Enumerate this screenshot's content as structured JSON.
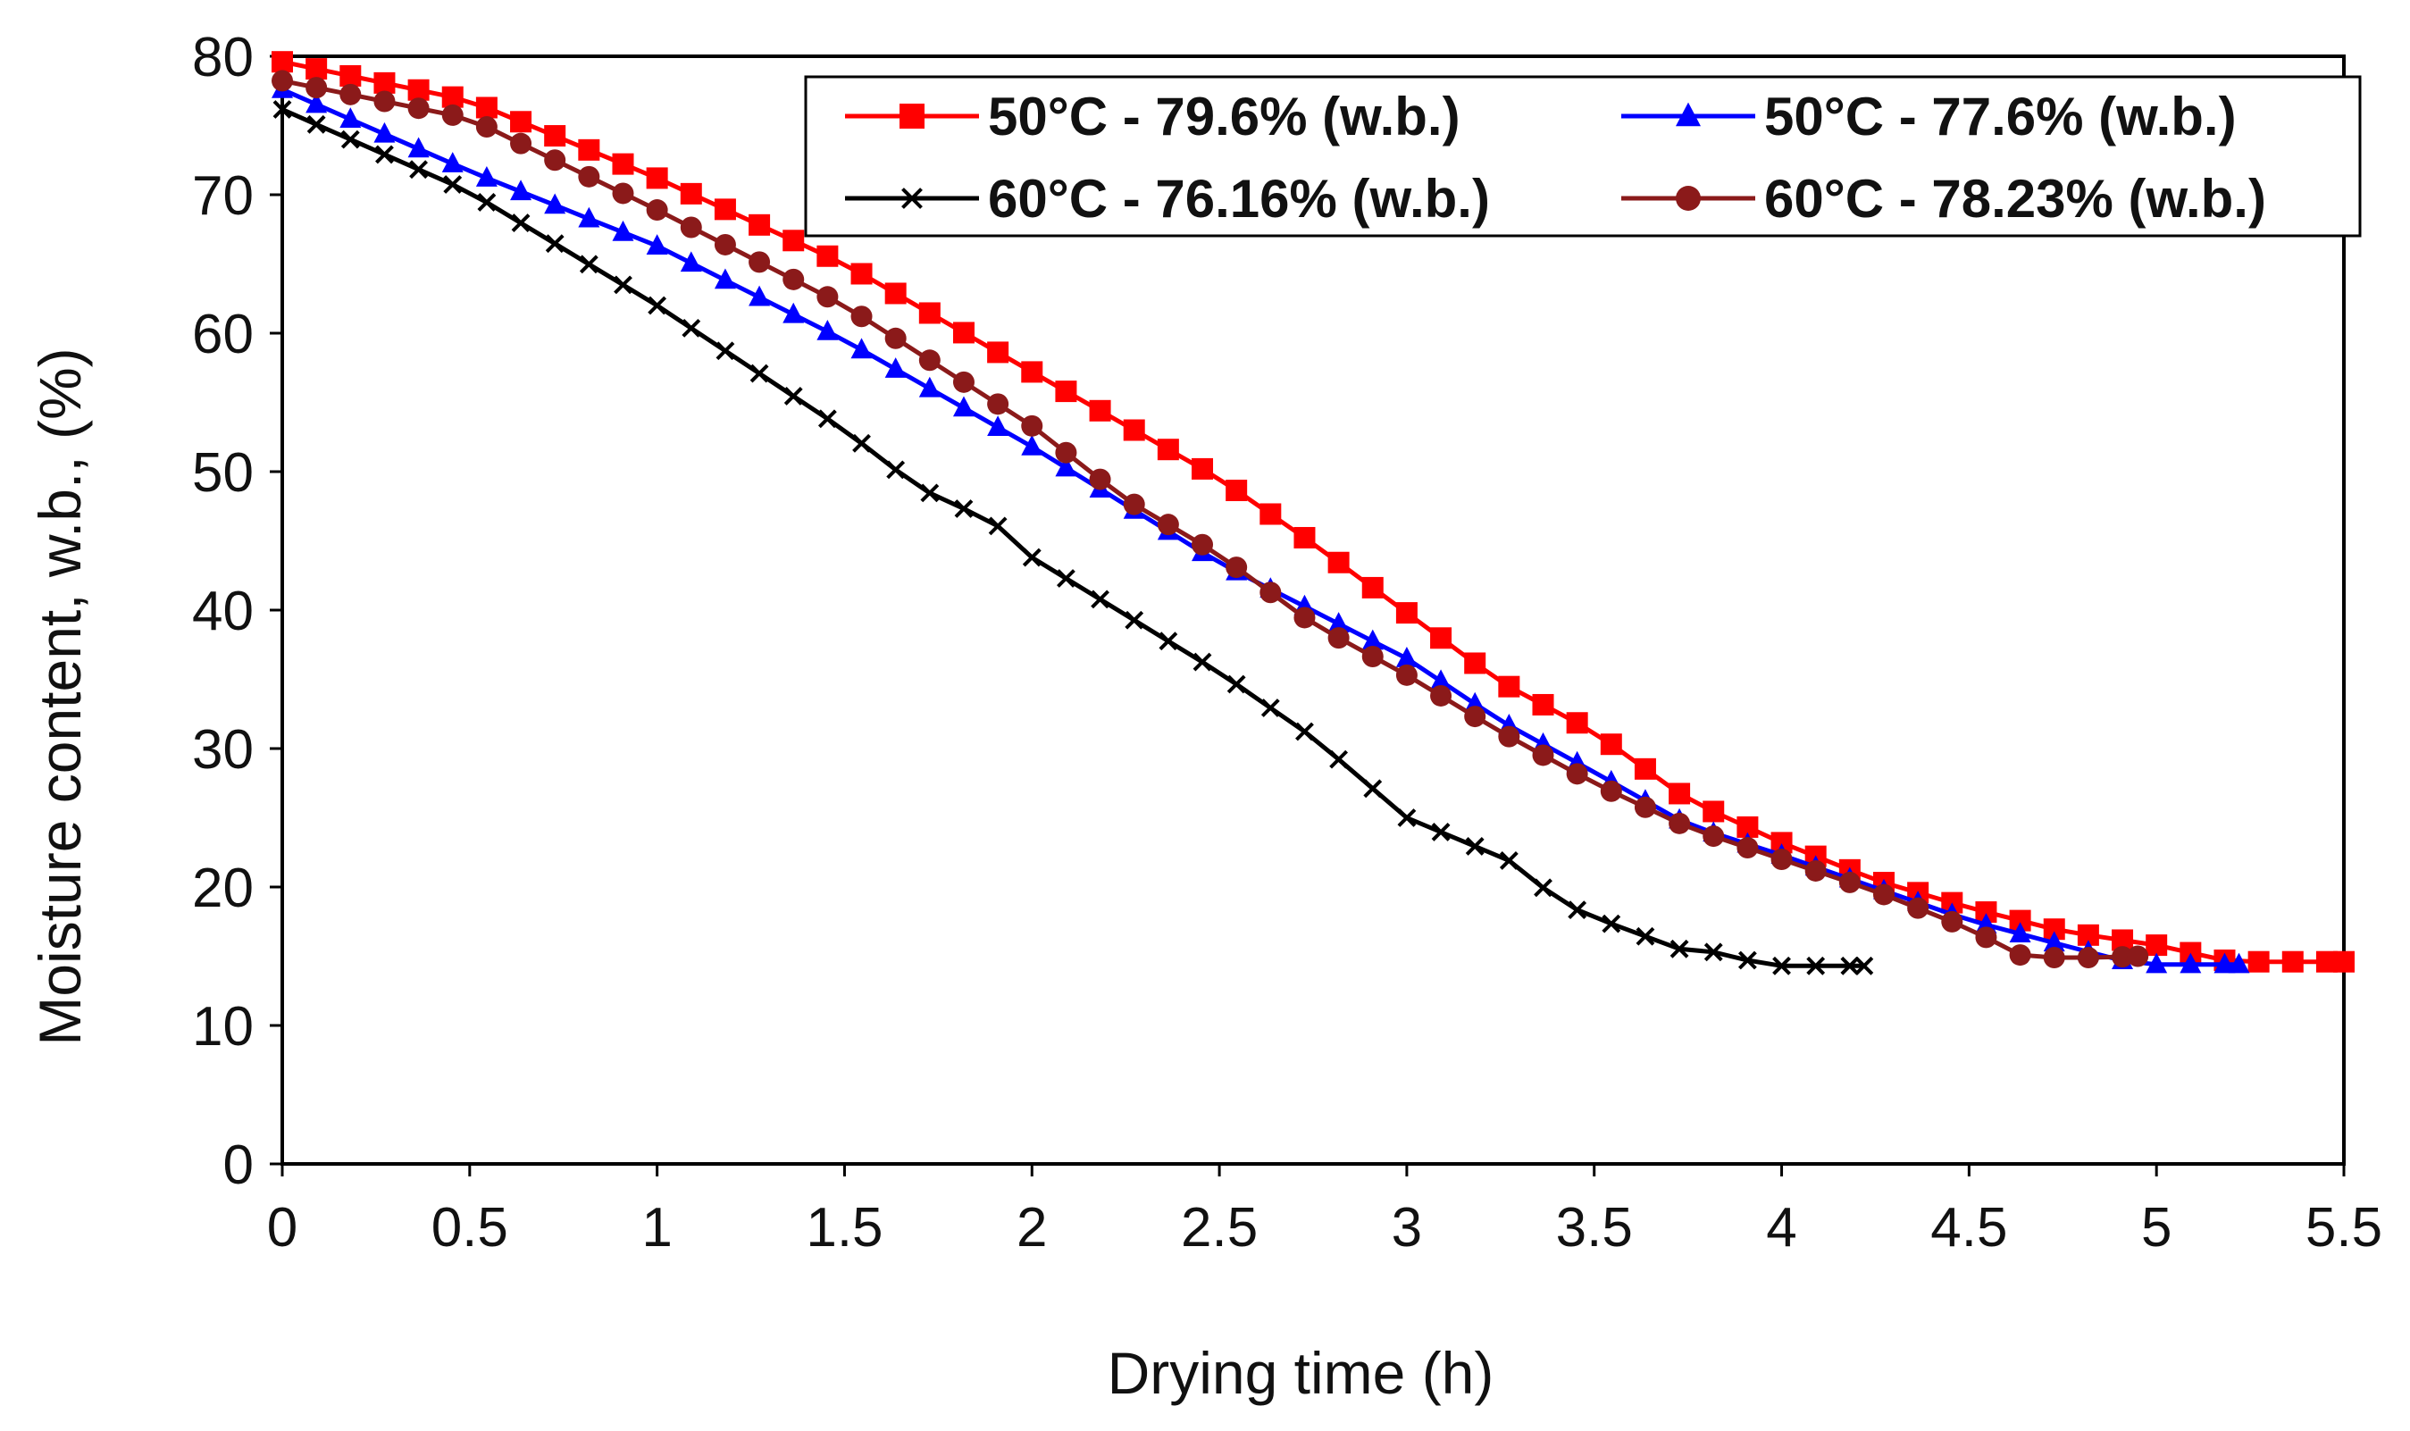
{
  "chart_data": {
    "type": "line",
    "title": "",
    "xlabel": "Drying time (h)",
    "ylabel": "Moisture content,  w.b., (%)",
    "xlim": [
      0,
      5.5
    ],
    "ylim": [
      0,
      80
    ],
    "x_ticks": [
      0,
      0.5,
      1,
      1.5,
      2,
      2.5,
      3,
      3.5,
      4,
      4.5,
      5,
      5.5
    ],
    "x_tick_labels": [
      "0",
      "0.5",
      "1",
      "1.5",
      "2",
      "2.5",
      "3",
      "3.5",
      "4",
      "4.5",
      "5",
      "5.5"
    ],
    "y_ticks": [
      0,
      10,
      20,
      30,
      40,
      50,
      60,
      70,
      80
    ],
    "y_tick_labels": [
      "0",
      "10",
      "20",
      "30",
      "40",
      "50",
      "60",
      "70",
      "80"
    ],
    "grid": false,
    "legend_position": "top-right",
    "series": [
      {
        "name": "50°C - 79.6% (w.b.)",
        "color": "#ff0000",
        "marker": "square",
        "key": [
          [
            0,
            79.6
          ],
          [
            0.5,
            76.8
          ],
          [
            1,
            71.2
          ],
          [
            1.5,
            65.0
          ],
          [
            2,
            57.2
          ],
          [
            2.5,
            49.5
          ],
          [
            2.75,
            44.8
          ],
          [
            3,
            39.8
          ],
          [
            3.25,
            34.8
          ],
          [
            3.5,
            31.2
          ],
          [
            3.75,
            26.3
          ],
          [
            4,
            23.2
          ],
          [
            4.25,
            20.5
          ],
          [
            4.5,
            18.5
          ],
          [
            4.75,
            16.8
          ],
          [
            5,
            15.8
          ],
          [
            5.2,
            14.6
          ],
          [
            5.5,
            14.6
          ]
        ]
      },
      {
        "name": "50°C - 77.6% (w.b.)",
        "color": "#0000ff",
        "marker": "triangle",
        "key": [
          [
            0,
            77.6
          ],
          [
            0.5,
            71.7
          ],
          [
            1,
            66.3
          ],
          [
            1.5,
            59.5
          ],
          [
            2,
            51.8
          ],
          [
            2.5,
            43.4
          ],
          [
            3,
            36.5
          ],
          [
            3.25,
            32.0
          ],
          [
            3.5,
            28.3
          ],
          [
            3.75,
            24.5
          ],
          [
            4,
            22.3
          ],
          [
            4.5,
            17.6
          ],
          [
            4.75,
            15.8
          ],
          [
            4.95,
            14.4
          ],
          [
            5.22,
            14.4
          ]
        ]
      },
      {
        "name": "60°C - 76.16% (w.b.)",
        "color": "#000000",
        "marker": "x",
        "key": [
          [
            0,
            76.16
          ],
          [
            0.5,
            70.2
          ],
          [
            1,
            62.0
          ],
          [
            1.5,
            53.0
          ],
          [
            1.7,
            48.8
          ],
          [
            1.9,
            46.3
          ],
          [
            2,
            43.8
          ],
          [
            2.5,
            35.5
          ],
          [
            2.75,
            30.8
          ],
          [
            3,
            25.0
          ],
          [
            3.3,
            21.6
          ],
          [
            3.4,
            19.0
          ],
          [
            3.5,
            17.8
          ],
          [
            3.75,
            15.3
          ],
          [
            3.85,
            15.3
          ],
          [
            3.95,
            14.3
          ],
          [
            4.22,
            14.3
          ]
        ]
      },
      {
        "name": "60°C - 78.23% (w.b.)",
        "color": "#8b1a1a",
        "marker": "circle",
        "key": [
          [
            0,
            78.23
          ],
          [
            0.5,
            75.5
          ],
          [
            1,
            68.9
          ],
          [
            1.5,
            62.0
          ],
          [
            2,
            53.3
          ],
          [
            2.25,
            48.0
          ],
          [
            2.5,
            44.0
          ],
          [
            2.75,
            39.0
          ],
          [
            3,
            35.3
          ],
          [
            3.25,
            31.2
          ],
          [
            3.5,
            27.5
          ],
          [
            3.75,
            24.3
          ],
          [
            4,
            22.0
          ],
          [
            4.25,
            19.7
          ],
          [
            4.5,
            17.0
          ],
          [
            4.65,
            14.9
          ],
          [
            4.85,
            14.9
          ],
          [
            4.95,
            15.0
          ]
        ]
      }
    ],
    "markers_per_hour": 11
  }
}
